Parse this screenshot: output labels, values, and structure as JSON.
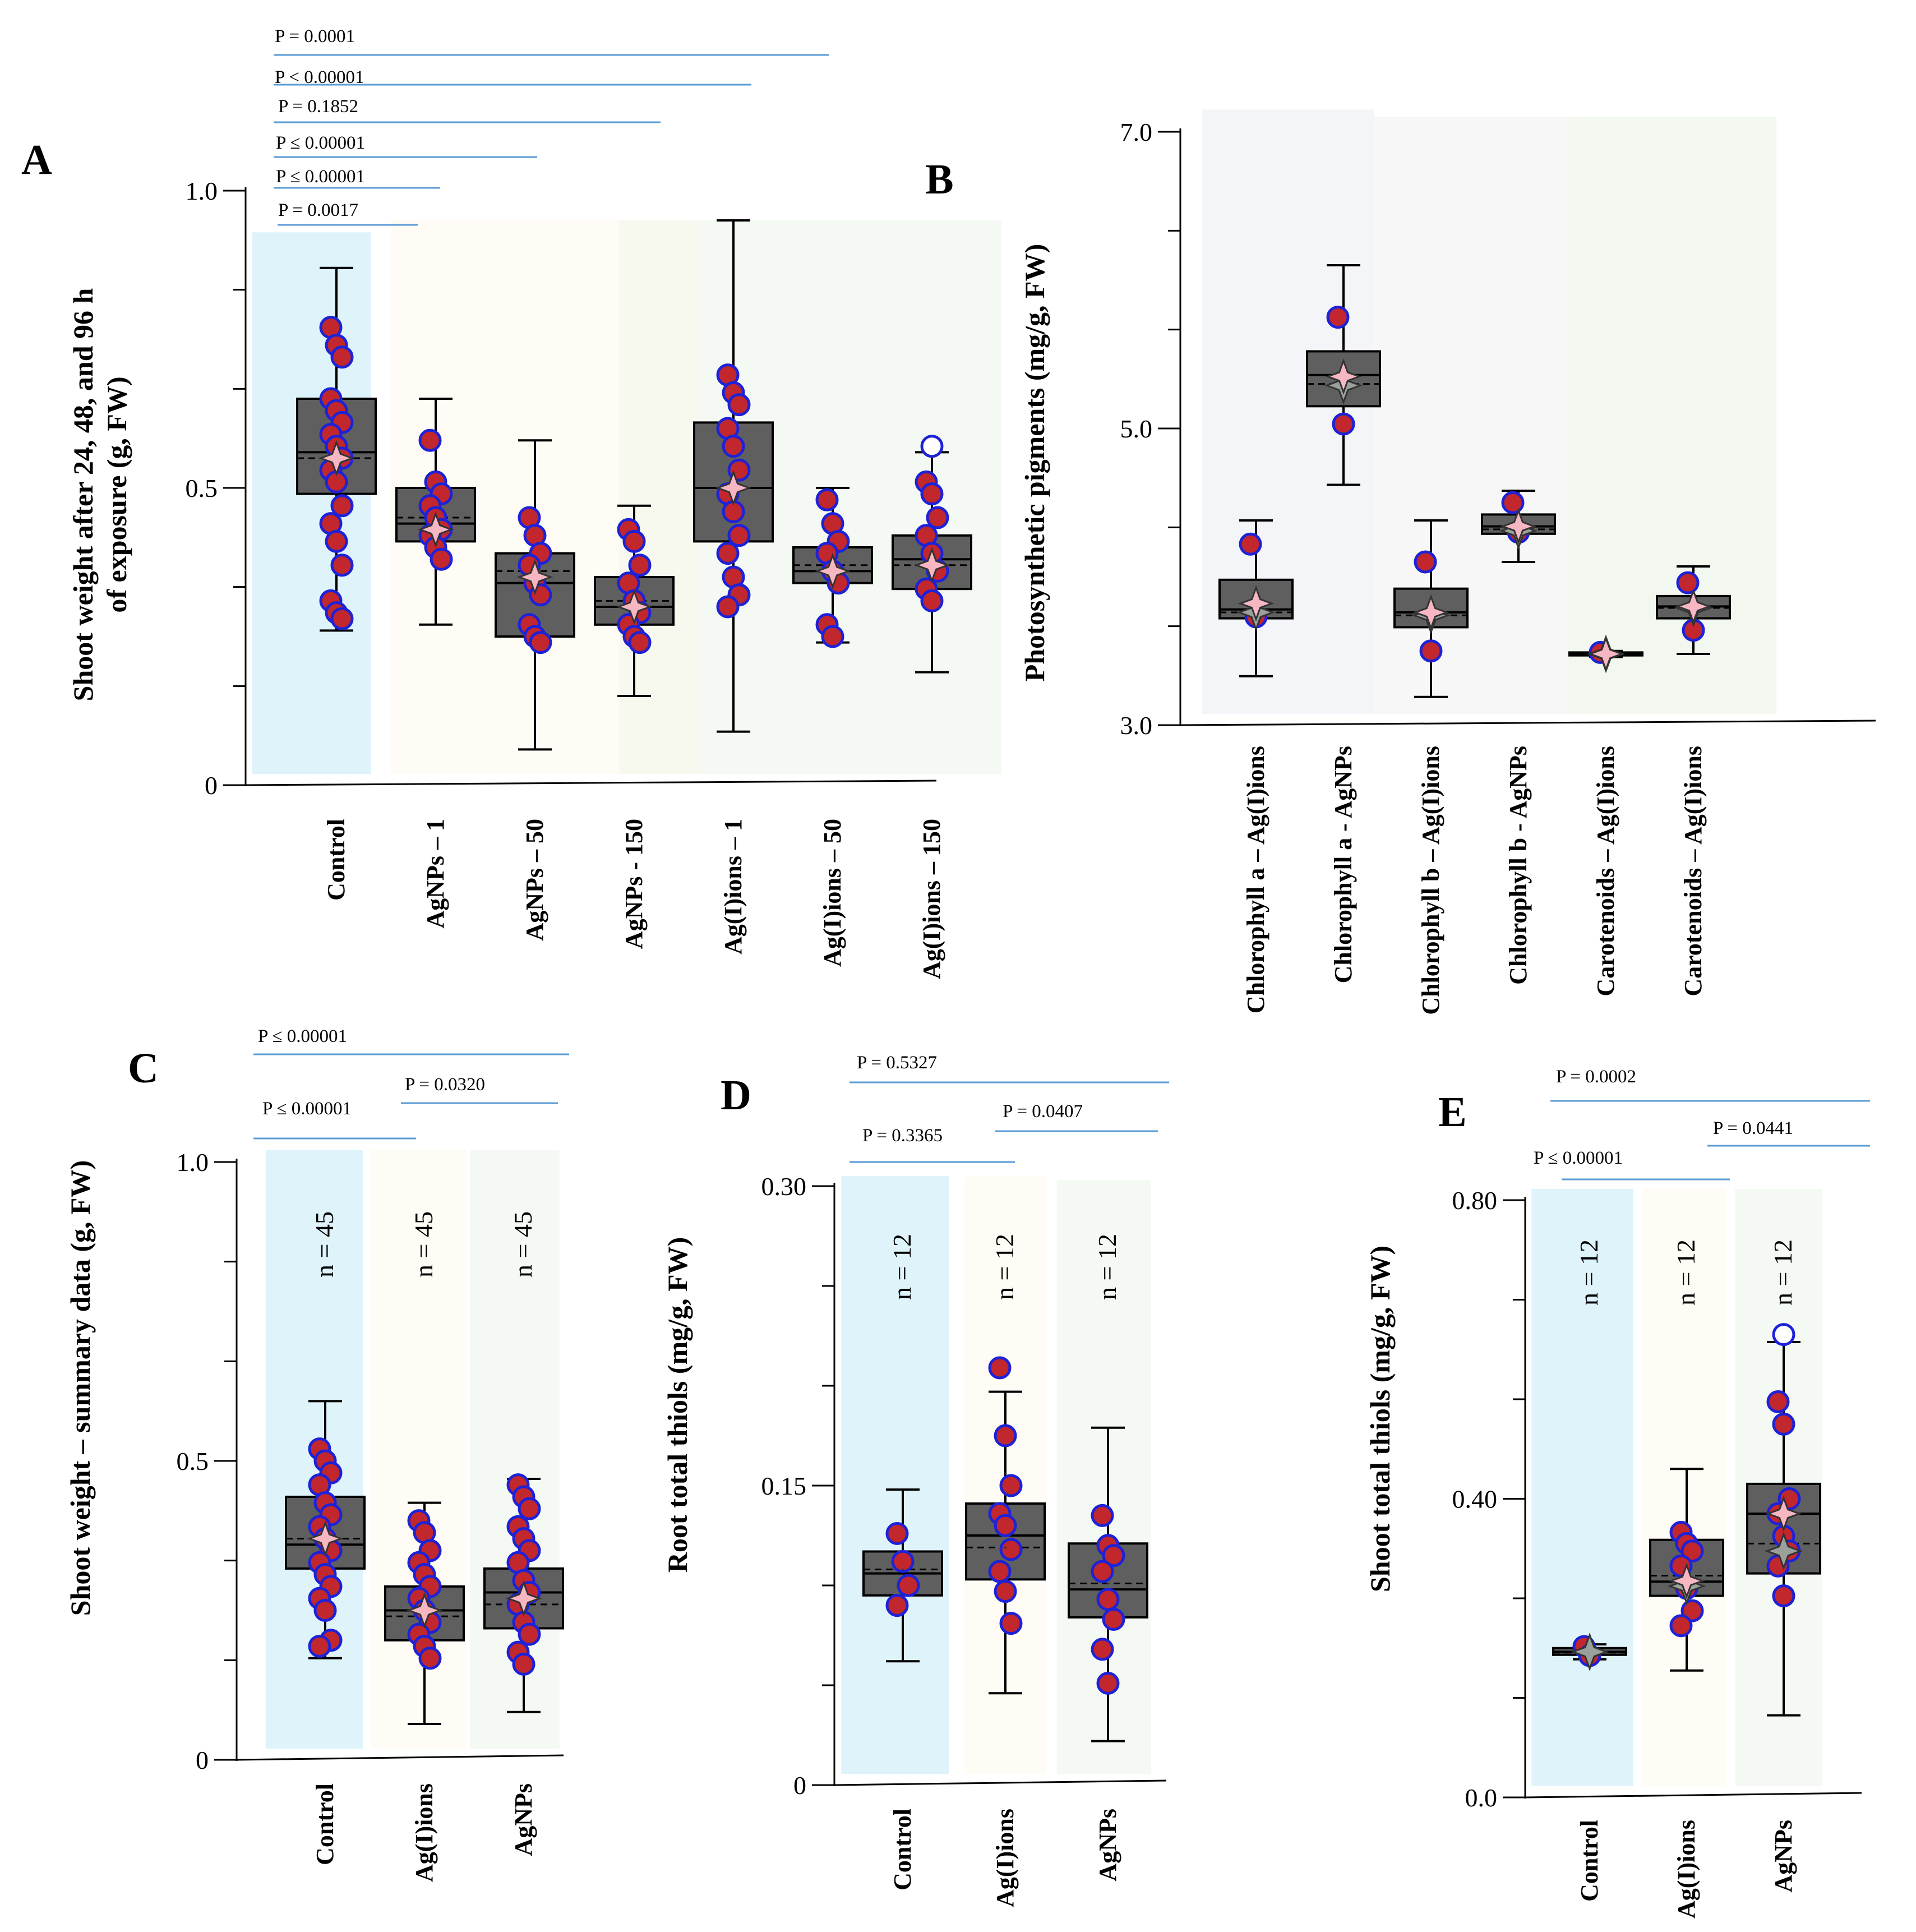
{
  "chart_data": [
    {
      "panel": "A",
      "type": "box",
      "ylabel": "Shoot weight after 24, 48, and 96 h of exposure (g, FW)",
      "ylim": [
        0,
        1.0
      ],
      "yticks": [
        {
          "v": 0,
          "label": "0"
        },
        {
          "v": 0.5,
          "label": "0.5"
        },
        {
          "v": 1.0,
          "label": "1.0"
        }
      ],
      "categories": [
        "Control",
        "AgNPs – 1",
        "AgNPs – 50",
        "AgNPs - 150",
        "Ag(I)ions – 1",
        "Ag(I)ions – 50",
        "Ag(I)ions – 150"
      ],
      "bands": [
        {
          "from": -0.85,
          "to": 0.35,
          "top": 0.93,
          "color": "#dff3fb"
        },
        {
          "from": 0.55,
          "to": 2.85,
          "top": 0.95,
          "color": "#fffbf5"
        },
        {
          "from": 2.85,
          "to": 3.65,
          "top": 0.95,
          "color": "#f7f9ee"
        },
        {
          "from": 3.65,
          "to": 6.7,
          "top": 0.95,
          "color": "#f4f9f3"
        }
      ],
      "boxes": [
        {
          "x": 0,
          "q1": 0.49,
          "median": 0.56,
          "q3": 0.65,
          "mean": 0.55,
          "wlo": 0.26,
          "whi": 0.87,
          "marker": 0.55,
          "points": [
            0.77,
            0.74,
            0.72,
            0.65,
            0.63,
            0.61,
            0.59,
            0.57,
            0.55,
            0.53,
            0.51,
            0.47,
            0.44,
            0.41,
            0.37,
            0.31,
            0.29,
            0.28
          ]
        },
        {
          "x": 1,
          "q1": 0.41,
          "median": 0.44,
          "q3": 0.5,
          "mean": 0.45,
          "wlo": 0.27,
          "whi": 0.65,
          "marker": 0.43,
          "points": [
            0.58,
            0.51,
            0.49,
            0.47,
            0.45,
            0.43,
            0.42,
            0.4,
            0.38
          ]
        },
        {
          "x": 2,
          "q1": 0.25,
          "median": 0.34,
          "q3": 0.39,
          "mean": 0.36,
          "wlo": 0.06,
          "whi": 0.58,
          "marker": 0.35,
          "points": [
            0.45,
            0.42,
            0.39,
            0.37,
            0.34,
            0.32,
            0.27,
            0.25,
            0.24
          ]
        },
        {
          "x": 3,
          "q1": 0.27,
          "median": 0.3,
          "q3": 0.35,
          "mean": 0.31,
          "wlo": 0.15,
          "whi": 0.47,
          "marker": 0.3,
          "points": [
            0.43,
            0.41,
            0.37,
            0.34,
            0.31,
            0.29,
            0.27,
            0.25,
            0.24
          ]
        },
        {
          "x": 4,
          "q1": 0.41,
          "median": 0.5,
          "q3": 0.61,
          "mean": 0.5,
          "wlo": 0.09,
          "whi": 0.95,
          "marker": 0.5,
          "points": [
            0.69,
            0.66,
            0.64,
            0.6,
            0.57,
            0.53,
            0.49,
            0.46,
            0.42,
            0.39,
            0.35,
            0.32,
            0.3
          ]
        },
        {
          "x": 5,
          "q1": 0.34,
          "median": 0.36,
          "q3": 0.4,
          "mean": 0.37,
          "wlo": 0.24,
          "whi": 0.5,
          "marker": 0.36,
          "points": [
            0.48,
            0.44,
            0.41,
            0.39,
            0.36,
            0.34,
            0.27,
            0.25
          ]
        },
        {
          "x": 6,
          "q1": 0.33,
          "median": 0.38,
          "q3": 0.42,
          "mean": 0.37,
          "wlo": 0.19,
          "whi": 0.56,
          "marker": 0.37,
          "points": [
            0.51,
            0.49,
            0.45,
            0.42,
            0.39,
            0.36,
            0.33,
            0.31
          ],
          "outliers": [
            0.57
          ]
        }
      ],
      "pvalues": [
        "P = 0.0001",
        "P < 0.00001",
        "P = 0.1852",
        "P ≤ 0.00001",
        "P ≤ 0.00001",
        "P = 0.0017"
      ]
    },
    {
      "panel": "B",
      "type": "box",
      "ylabel": "Photosynthetic pigments (mg/g, FW)",
      "ylim": [
        3.0,
        7.0
      ],
      "yticks": [
        {
          "v": 3.0,
          "label": "3.0"
        },
        {
          "v": 5.0,
          "label": "5.0"
        },
        {
          "v": 7.0,
          "label": "7.0"
        }
      ],
      "categories": [
        "Chlorophyll a – Ag(I)ions",
        "Chlorophyll a - AgNPs",
        "Chlorophyll b – Ag(I)ions",
        "Chlorophyll b - AgNPs",
        "Carotenoids – Ag(I)ions",
        "Carotenoids – Ag(I)ions"
      ],
      "bands": [
        {
          "from": -0.62,
          "to": 1.35,
          "top": 7.15,
          "color": "#f3f5f9"
        },
        {
          "from": 1.35,
          "to": 3.58,
          "top": 7.1,
          "color": "#f7f7f7"
        },
        {
          "from": 3.58,
          "to": 5.95,
          "top": 7.1,
          "color": "#f2f7ef"
        }
      ],
      "boxes": [
        {
          "x": 0,
          "q1": 3.72,
          "median": 3.78,
          "q3": 3.98,
          "mean": 3.76,
          "wlo": 3.33,
          "whi": 4.38,
          "marker": 3.82,
          "marker2": 3.76,
          "points": [
            4.22,
            3.73
          ]
        },
        {
          "x": 1,
          "q1": 5.15,
          "median": 5.36,
          "q3": 5.52,
          "mean": 5.3,
          "wlo": 4.62,
          "whi": 6.1,
          "marker": 5.35,
          "marker2": 5.29,
          "points": [
            5.75,
            5.03
          ]
        },
        {
          "x": 2,
          "q1": 3.66,
          "median": 3.76,
          "q3": 3.92,
          "mean": 3.74,
          "wlo": 3.19,
          "whi": 4.38,
          "marker": 3.76,
          "marker2": 3.74,
          "points": [
            4.1,
            3.5
          ]
        },
        {
          "x": 3,
          "q1": 4.29,
          "median": 4.34,
          "q3": 4.42,
          "mean": 4.32,
          "wlo": 4.1,
          "whi": 4.58,
          "marker": 4.34,
          "marker2": 4.31,
          "points": [
            4.5,
            4.3
          ]
        },
        {
          "x": 4,
          "q1": 3.47,
          "median": 3.48,
          "q3": 3.49,
          "mean": 3.48,
          "wlo": 3.46,
          "whi": 3.5,
          "marker": 3.48,
          "marker2": 3.48,
          "points": [
            3.49
          ]
        },
        {
          "x": 5,
          "q1": 3.72,
          "median": 3.8,
          "q3": 3.87,
          "mean": 3.79,
          "wlo": 3.48,
          "whi": 4.07,
          "marker": 3.8,
          "marker2": 3.79,
          "points": [
            3.96,
            3.64
          ]
        }
      ],
      "pvalues": []
    },
    {
      "panel": "C",
      "type": "box",
      "ylabel": "Shoot weight – summary data (g, FW)",
      "ylim": [
        0,
        1.0
      ],
      "yticks": [
        {
          "v": 0,
          "label": "0"
        },
        {
          "v": 0.5,
          "label": "0.5"
        },
        {
          "v": 1.0,
          "label": "1.0"
        }
      ],
      "categories": [
        "Control",
        "Ag(I)ions",
        "AgNPs"
      ],
      "bands": [
        {
          "from": -0.6,
          "to": 0.38,
          "top": 1.02,
          "color": "#dff3fb"
        },
        {
          "from": 0.46,
          "to": 1.42,
          "top": 1.02,
          "color": "#fffbf5"
        },
        {
          "from": 1.46,
          "to": 2.36,
          "top": 1.02,
          "color": "#f4f9f4"
        }
      ],
      "boxes": [
        {
          "x": 0,
          "q1": 0.32,
          "median": 0.36,
          "q3": 0.44,
          "mean": 0.37,
          "wlo": 0.17,
          "whi": 0.6,
          "marker": 0.37,
          "points": [
            0.52,
            0.5,
            0.48,
            0.46,
            0.43,
            0.41,
            0.39,
            0.37,
            0.35,
            0.33,
            0.31,
            0.29,
            0.27,
            0.25,
            0.2,
            0.19
          ]
        },
        {
          "x": 1,
          "q1": 0.2,
          "median": 0.25,
          "q3": 0.29,
          "mean": 0.24,
          "wlo": 0.06,
          "whi": 0.43,
          "marker": 0.25,
          "points": [
            0.4,
            0.38,
            0.35,
            0.33,
            0.31,
            0.29,
            0.27,
            0.25,
            0.23,
            0.21,
            0.19,
            0.17
          ]
        },
        {
          "x": 2,
          "q1": 0.22,
          "median": 0.28,
          "q3": 0.32,
          "mean": 0.26,
          "wlo": 0.08,
          "whi": 0.47,
          "marker": 0.27,
          "points": [
            0.46,
            0.44,
            0.42,
            0.39,
            0.37,
            0.35,
            0.33,
            0.3,
            0.28,
            0.26,
            0.23,
            0.21,
            0.18,
            0.16
          ]
        }
      ],
      "nlabels": [
        "n = 45",
        "n = 45",
        "n = 45"
      ],
      "pvalues": [
        "P ≤ 0.00001",
        "P = 0.0320",
        "P ≤ 0.00001"
      ]
    },
    {
      "panel": "D",
      "type": "box",
      "ylabel": "Root total thiols (mg/g, FW)",
      "ylim": [
        0,
        0.3
      ],
      "yticks": [
        {
          "v": 0,
          "label": "0"
        },
        {
          "v": 0.15,
          "label": "0.15"
        },
        {
          "v": 0.3,
          "label": "0.30"
        }
      ],
      "categories": [
        "Control",
        "Ag(I)ions",
        "AgNPs"
      ],
      "bands": [
        {
          "from": -0.6,
          "to": 0.45,
          "top": 0.305,
          "color": "#dff3fb"
        },
        {
          "from": 0.6,
          "to": 1.4,
          "top": 0.305,
          "color": "#fffbf5"
        },
        {
          "from": 1.5,
          "to": 2.42,
          "top": 0.303,
          "color": "#f4f9f4"
        }
      ],
      "boxes": [
        {
          "x": 0,
          "q1": 0.095,
          "median": 0.106,
          "q3": 0.117,
          "mean": 0.108,
          "wlo": 0.062,
          "whi": 0.148,
          "points": [
            0.126,
            0.112,
            0.1,
            0.09
          ]
        },
        {
          "x": 1,
          "q1": 0.103,
          "median": 0.125,
          "q3": 0.141,
          "mean": 0.119,
          "wlo": 0.046,
          "whi": 0.197,
          "points": [
            0.209,
            0.175,
            0.15,
            0.136,
            0.13,
            0.118,
            0.107,
            0.097,
            0.081
          ]
        },
        {
          "x": 2,
          "q1": 0.084,
          "median": 0.098,
          "q3": 0.121,
          "mean": 0.101,
          "wlo": 0.022,
          "whi": 0.179,
          "points": [
            0.135,
            0.12,
            0.115,
            0.107,
            0.093,
            0.083,
            0.068,
            0.051
          ]
        }
      ],
      "nlabels": [
        "n = 12",
        "n = 12",
        "n = 12"
      ],
      "pvalues": [
        "P = 0.5327",
        "P = 0.0407",
        "P = 0.3365"
      ]
    },
    {
      "panel": "E",
      "type": "box",
      "ylabel": "Shoot total thiols (mg/g, FW)",
      "ylim": [
        0,
        0.8
      ],
      "yticks": [
        {
          "v": 0,
          "label": "0.0"
        },
        {
          "v": 0.4,
          "label": "0.40"
        },
        {
          "v": 0.8,
          "label": "0.80"
        }
      ],
      "categories": [
        "Control",
        "Ag(I)ions",
        "AgNPs"
      ],
      "bands": [
        {
          "from": -0.6,
          "to": 0.45,
          "top": 0.815,
          "color": "#dff3fb"
        },
        {
          "from": 0.55,
          "to": 1.4,
          "top": 0.815,
          "color": "#fffbf5"
        },
        {
          "from": 1.5,
          "to": 2.4,
          "top": 0.815,
          "color": "#f4f9f4"
        }
      ],
      "boxes": [
        {
          "x": 0,
          "q1": 0.191,
          "median": 0.195,
          "q3": 0.2,
          "mean": 0.194,
          "wlo": 0.185,
          "whi": 0.205,
          "marker2": 0.195,
          "points": [
            0.202,
            0.19
          ]
        },
        {
          "x": 1,
          "q1": 0.27,
          "median": 0.289,
          "q3": 0.345,
          "mean": 0.297,
          "wlo": 0.17,
          "whi": 0.44,
          "marker": 0.29,
          "marker2": 0.283,
          "points": [
            0.355,
            0.34,
            0.33,
            0.31,
            0.28,
            0.25,
            0.23
          ]
        },
        {
          "x": 2,
          "q1": 0.3,
          "median": 0.38,
          "q3": 0.42,
          "mean": 0.34,
          "wlo": 0.11,
          "whi": 0.61,
          "marker": 0.38,
          "marker2": 0.33,
          "points": [
            0.53,
            0.5,
            0.4,
            0.38,
            0.35,
            0.33,
            0.31,
            0.27
          ],
          "outliers": [
            0.62
          ]
        }
      ],
      "nlabels": [
        "n = 12",
        "n = 12",
        "n = 12"
      ],
      "pvalues": [
        "P = 0.0002",
        "P = 0.0441",
        "P ≤ 0.00001"
      ]
    }
  ],
  "colors": {
    "box_fill": "#5f5f5f",
    "point_fill": "#c1272d",
    "point_stroke": "#1e22d6",
    "mean_marker": "#f6b7c3",
    "mean_marker2": "#9aa09a",
    "pline": "#5b9bd5"
  }
}
